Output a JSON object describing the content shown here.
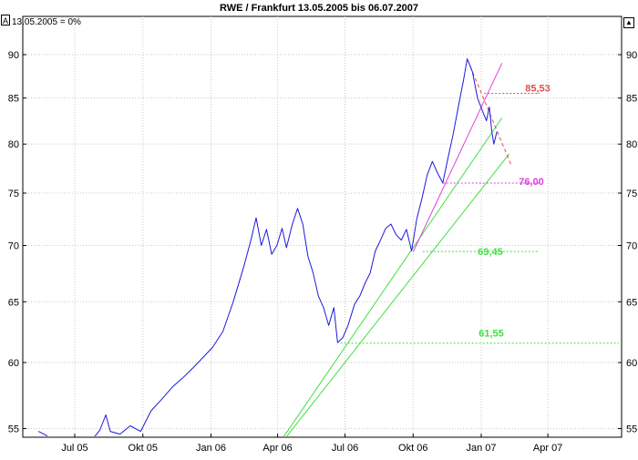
{
  "chart_data": {
    "type": "line",
    "title": "RWE / Frankfurt 13.05.2005 bis 06.07.2007",
    "legend_note": "13.05.2005 = 0%",
    "mode_label": "A",
    "x_ticks": [
      "Jul 05",
      "Okt 05",
      "Jan 06",
      "Apr 06",
      "Jul 06",
      "Okt 06",
      "Jan 07",
      "Apr 07"
    ],
    "y_ticks": [
      55,
      60,
      65,
      70,
      75,
      80,
      85,
      90
    ],
    "ylim": [
      54,
      93
    ],
    "xlim": [
      "2005-05-13",
      "2007-07-06"
    ],
    "y_scale": "log",
    "grid": true,
    "series": [
      {
        "color": "#1a1adc",
        "points": [
          [
            "2005-05-13",
            54.8
          ],
          [
            "2005-05-24",
            54.5
          ],
          [
            "2005-06-06",
            53.6
          ],
          [
            "2005-06-20",
            53.3
          ],
          [
            "2005-07-05",
            53.6
          ],
          [
            "2005-07-20",
            53.9
          ],
          [
            "2005-08-04",
            54.9
          ],
          [
            "2005-08-12",
            56.0
          ],
          [
            "2005-08-18",
            54.8
          ],
          [
            "2005-08-31",
            54.6
          ],
          [
            "2005-09-14",
            55.2
          ],
          [
            "2005-09-28",
            54.8
          ],
          [
            "2005-10-12",
            56.3
          ],
          [
            "2005-10-27",
            57.2
          ],
          [
            "2005-11-10",
            58.1
          ],
          [
            "2005-11-24",
            58.8
          ],
          [
            "2005-12-08",
            59.6
          ],
          [
            "2006-01-03",
            61.2
          ],
          [
            "2006-01-17",
            62.5
          ],
          [
            "2006-01-31",
            65.0
          ],
          [
            "2006-02-14",
            68.0
          ],
          [
            "2006-02-24",
            70.5
          ],
          [
            "2006-03-03",
            72.6
          ],
          [
            "2006-03-10",
            70.0
          ],
          [
            "2006-03-17",
            71.5
          ],
          [
            "2006-03-24",
            69.2
          ],
          [
            "2006-03-31",
            70.0
          ],
          [
            "2006-04-07",
            71.6
          ],
          [
            "2006-04-13",
            69.8
          ],
          [
            "2006-04-21",
            72.0
          ],
          [
            "2006-04-28",
            73.5
          ],
          [
            "2006-05-05",
            72.0
          ],
          [
            "2006-05-12",
            69.0
          ],
          [
            "2006-05-19",
            67.5
          ],
          [
            "2006-05-26",
            65.5
          ],
          [
            "2006-06-02",
            64.5
          ],
          [
            "2006-06-09",
            63.0
          ],
          [
            "2006-06-16",
            64.5
          ],
          [
            "2006-06-21",
            61.6
          ],
          [
            "2006-06-28",
            62.0
          ],
          [
            "2006-07-05",
            63.0
          ],
          [
            "2006-07-14",
            64.8
          ],
          [
            "2006-07-21",
            65.5
          ],
          [
            "2006-07-28",
            66.6
          ],
          [
            "2006-08-04",
            67.5
          ],
          [
            "2006-08-11",
            69.5
          ],
          [
            "2006-08-18",
            70.5
          ],
          [
            "2006-08-25",
            71.6
          ],
          [
            "2006-09-01",
            72.0
          ],
          [
            "2006-09-08",
            71.0
          ],
          [
            "2006-09-15",
            70.5
          ],
          [
            "2006-09-22",
            71.5
          ],
          [
            "2006-09-29",
            69.5
          ],
          [
            "2006-10-06",
            72.5
          ],
          [
            "2006-10-13",
            74.5
          ],
          [
            "2006-10-20",
            76.8
          ],
          [
            "2006-10-27",
            78.2
          ],
          [
            "2006-11-03",
            77.0
          ],
          [
            "2006-11-10",
            76.0
          ],
          [
            "2006-11-17",
            78.5
          ],
          [
            "2006-11-24",
            81.0
          ],
          [
            "2006-12-01",
            84.0
          ],
          [
            "2006-12-08",
            87.0
          ],
          [
            "2006-12-13",
            89.5
          ],
          [
            "2006-12-20",
            88.0
          ],
          [
            "2006-12-27",
            85.0
          ],
          [
            "2007-01-03",
            83.5
          ],
          [
            "2007-01-08",
            82.5
          ],
          [
            "2007-01-12",
            84.0
          ],
          [
            "2007-01-15",
            81.5
          ],
          [
            "2007-01-18",
            80.0
          ],
          [
            "2007-01-22",
            81.3
          ]
        ]
      }
    ],
    "trendlines": [
      {
        "color": "#40e040",
        "from": [
          "2006-03-15",
          52.5
        ],
        "to": [
          "2007-01-29",
          82.8
        ]
      },
      {
        "color": "#40e040",
        "from": [
          "2006-03-15",
          52.5
        ],
        "to": [
          "2007-02-08",
          79.0
        ]
      },
      {
        "color": "#e040e0",
        "from": [
          "2006-10-01",
          69.4
        ],
        "to": [
          "2007-01-29",
          89.0
        ]
      },
      {
        "color": "#e05050",
        "dashed": true,
        "from": [
          "2006-12-14",
          89.3
        ],
        "to": [
          "2007-02-10",
          77.9
        ]
      }
    ],
    "levels": [
      {
        "value": 85.53,
        "label": "85,53",
        "color": "#e05050",
        "from": "2007-01-05",
        "to": "2007-03-21"
      },
      {
        "value": 76.0,
        "label": "76,00",
        "color": "#e040e0",
        "from": "2006-11-10",
        "to": "2007-03-21"
      },
      {
        "value": 69.45,
        "label": "69,45",
        "color": "#40e040",
        "from": "2006-10-14",
        "to": "2007-03-21"
      },
      {
        "value": 61.55,
        "label": "61,55",
        "color": "#40e040",
        "from": "2006-06-25",
        "to": "2007-07-06"
      }
    ]
  }
}
